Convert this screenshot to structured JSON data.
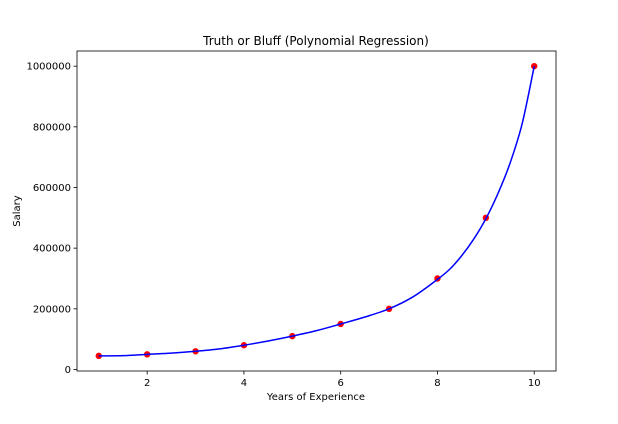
{
  "chart_data": {
    "type": "scatter",
    "title": "Truth or Bluff (Polynomial Regression)",
    "xlabel": "Years of Experience",
    "ylabel": "Salary",
    "xlim": [
      0.55,
      10.45
    ],
    "ylim": [
      -5000,
      1050000
    ],
    "x_ticks": [
      2,
      4,
      6,
      8,
      10
    ],
    "y_ticks": [
      0,
      200000,
      400000,
      600000,
      800000,
      1000000
    ],
    "grid": false,
    "series": [
      {
        "kind": "scatter",
        "color": "#ff0000",
        "x": [
          1,
          2,
          3,
          4,
          5,
          6,
          7,
          8,
          9,
          10
        ],
        "y": [
          45000,
          50000,
          60000,
          80000,
          110000,
          150000,
          200000,
          300000,
          500000,
          1000000
        ]
      },
      {
        "kind": "line",
        "color": "#0000ff",
        "x": [
          1,
          1.5,
          2,
          2.5,
          3,
          3.5,
          4,
          4.5,
          5,
          5.5,
          6,
          6.5,
          7,
          7.5,
          8,
          8.25,
          8.5,
          8.75,
          9,
          9.25,
          9.5,
          9.75,
          10
        ],
        "y": [
          45000,
          45500,
          50000,
          54000,
          60000,
          68000,
          80000,
          94000,
          110000,
          128000,
          150000,
          173000,
          200000,
          240000,
          297000,
          330000,
          375000,
          430000,
          497000,
          580000,
          680000,
          810000,
          1000000
        ]
      }
    ]
  }
}
